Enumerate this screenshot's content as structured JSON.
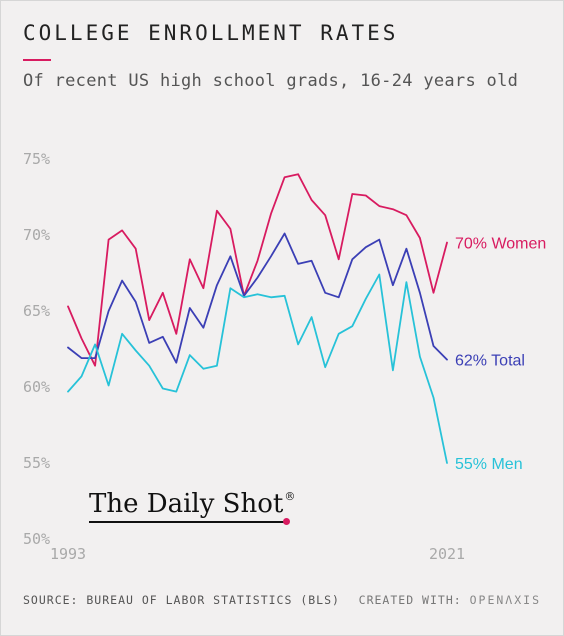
{
  "header": {
    "title": "COLLEGE ENROLLMENT RATES",
    "subtitle": "Of recent US high school grads, 16-24 years old"
  },
  "footer": {
    "source": "SOURCE: BUREAU OF LABOR STATISTICS (BLS)",
    "credit_prefix": "CREATED WITH:",
    "credit_brand": "OPENΛXIS"
  },
  "branding": {
    "logo_text": "The Daily Shot",
    "logo_mark": "®",
    "accent": "#d81b60"
  },
  "chart_data": {
    "type": "line",
    "title": "COLLEGE ENROLLMENT RATES",
    "subtitle": "Of recent US high school grads, 16-24 years old",
    "x": [
      1993,
      1994,
      1995,
      1996,
      1997,
      1998,
      1999,
      2000,
      2001,
      2002,
      2003,
      2004,
      2005,
      2006,
      2007,
      2008,
      2009,
      2010,
      2011,
      2012,
      2013,
      2014,
      2015,
      2016,
      2017,
      2018,
      2019,
      2020,
      2021
    ],
    "x_tick_labels": [
      "1993",
      "2021"
    ],
    "y_tick_labels": [
      "50%",
      "55%",
      "60%",
      "65%",
      "70%",
      "75%"
    ],
    "ylim": [
      50,
      76
    ],
    "xlim": [
      1993,
      2021
    ],
    "grid": false,
    "series": [
      {
        "name": "Women",
        "end_label": "70% Women",
        "color": "#d81b60",
        "values": [
          65.3,
          63.2,
          61.4,
          69.7,
          70.3,
          69.1,
          64.4,
          66.2,
          63.5,
          68.4,
          66.5,
          71.6,
          70.4,
          66.0,
          68.3,
          71.4,
          73.8,
          74.0,
          72.3,
          71.3,
          68.4,
          72.7,
          72.6,
          71.9,
          71.7,
          71.3,
          69.8,
          66.2,
          69.5
        ]
      },
      {
        "name": "Total",
        "end_label": "62% Total",
        "color": "#3b3fb5",
        "values": [
          62.6,
          61.9,
          61.9,
          65.0,
          67.0,
          65.6,
          62.9,
          63.3,
          61.6,
          65.2,
          63.9,
          66.7,
          68.6,
          66.0,
          67.2,
          68.6,
          70.1,
          68.1,
          68.3,
          66.2,
          65.9,
          68.4,
          69.2,
          69.7,
          66.7,
          69.1,
          66.2,
          62.7,
          61.8
        ]
      },
      {
        "name": "Men",
        "end_label": "55% Men",
        "color": "#27c2d8",
        "values": [
          59.7,
          60.7,
          62.8,
          60.1,
          63.5,
          62.4,
          61.4,
          59.9,
          59.7,
          62.1,
          61.2,
          61.4,
          66.5,
          65.9,
          66.1,
          65.9,
          66.0,
          62.8,
          64.6,
          61.3,
          63.5,
          64.0,
          65.8,
          67.4,
          61.1,
          66.9,
          62.0,
          59.3,
          55.0
        ]
      }
    ],
    "xlabel": "",
    "ylabel": ""
  }
}
